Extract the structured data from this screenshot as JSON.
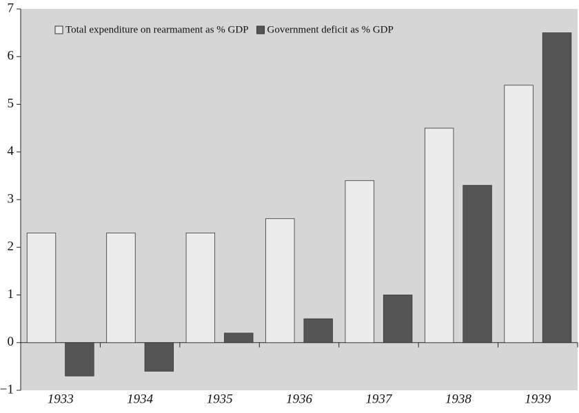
{
  "chart_data": {
    "type": "bar",
    "categories": [
      "1933",
      "1934",
      "1935",
      "1936",
      "1937",
      "1938",
      "1939"
    ],
    "series": [
      {
        "name": "Total expenditure on rearmament as % GDP",
        "color": "#ececec",
        "values": [
          2.3,
          2.3,
          2.3,
          2.6,
          3.4,
          4.5,
          5.4
        ]
      },
      {
        "name": "Government deficit as % GDP",
        "color": "#555555",
        "values": [
          -0.7,
          -0.6,
          0.2,
          0.5,
          1.0,
          3.3,
          6.5
        ]
      }
    ],
    "ylim": [
      -1,
      7
    ],
    "yticks": [
      {
        "value": -1,
        "label": "−1"
      },
      0,
      1,
      2,
      3,
      4,
      5,
      6,
      7
    ],
    "legend": "top-left"
  }
}
